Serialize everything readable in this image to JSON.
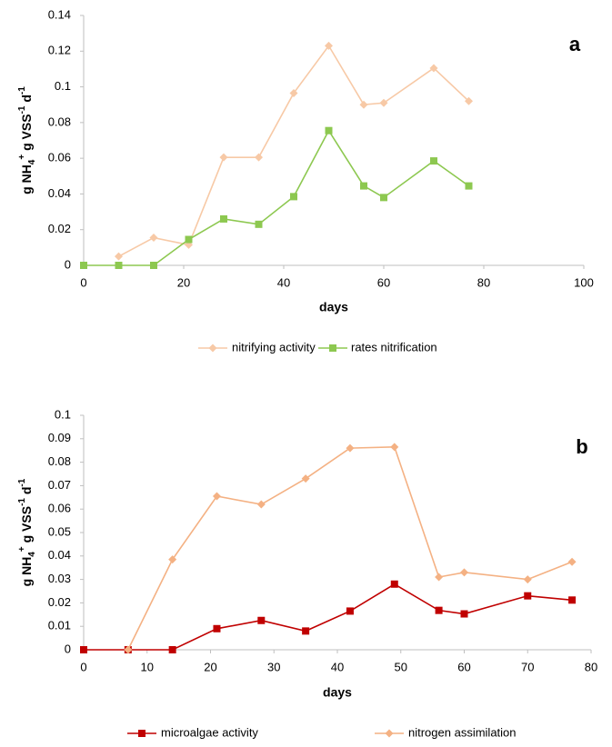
{
  "chart_data": [
    {
      "type": "line",
      "annotation": "a",
      "xlabel": "days",
      "ylabel": [
        "g NH",
        "4",
        "+",
        " g VSS",
        "-1",
        " d",
        "-1"
      ],
      "x": [
        0,
        7,
        14,
        21,
        28,
        35,
        42,
        49,
        56,
        60,
        70,
        77
      ],
      "xlim": [
        0,
        100
      ],
      "xticks": [
        0,
        20,
        40,
        60,
        80,
        100
      ],
      "ylim": [
        0,
        0.14
      ],
      "yticks": [
        0,
        0.02,
        0.04,
        0.06,
        0.08,
        0.1,
        0.12,
        0.14
      ],
      "series": [
        {
          "name": "nitrifying activity",
          "color": "#f7c9a6",
          "marker": "diamond",
          "values": [
            null,
            0.005,
            0.0155,
            0.0115,
            0.0605,
            0.0605,
            0.0965,
            0.123,
            0.09,
            0.091,
            0.1105,
            0.092
          ]
        },
        {
          "name": "rates nitrification",
          "color": "#8dc850",
          "marker": "square",
          "values": [
            0,
            0,
            0,
            0.0145,
            0.026,
            0.023,
            0.0385,
            0.0755,
            0.0445,
            0.038,
            0.0585,
            0.0445
          ]
        }
      ]
    },
    {
      "type": "line",
      "annotation": "b",
      "xlabel": "days",
      "ylabel": [
        "g NH",
        "4",
        "+",
        " g VSS",
        "-1",
        " d",
        "-1"
      ],
      "x": [
        0,
        7,
        14,
        21,
        28,
        35,
        42,
        49,
        56,
        60,
        70,
        77
      ],
      "xlim": [
        0,
        80
      ],
      "xticks": [
        0,
        10,
        20,
        30,
        40,
        50,
        60,
        70,
        80
      ],
      "ylim": [
        0,
        0.1
      ],
      "yticks": [
        0,
        0.01,
        0.02,
        0.03,
        0.04,
        0.05,
        0.06,
        0.07,
        0.08,
        0.09,
        0.1
      ],
      "series": [
        {
          "name": "microalgae activity",
          "color": "#c00000",
          "marker": "square",
          "values": [
            0,
            0,
            0,
            0.009,
            0.0125,
            0.008,
            0.0165,
            0.028,
            0.0168,
            0.0153,
            0.023,
            0.0212
          ]
        },
        {
          "name": "nitrogen assimilation",
          "color": "#f4b183",
          "marker": "diamond",
          "values": [
            null,
            0,
            0.0385,
            0.0655,
            0.062,
            0.073,
            0.086,
            0.0865,
            0.031,
            0.033,
            0.03,
            0.0375
          ]
        }
      ]
    }
  ]
}
